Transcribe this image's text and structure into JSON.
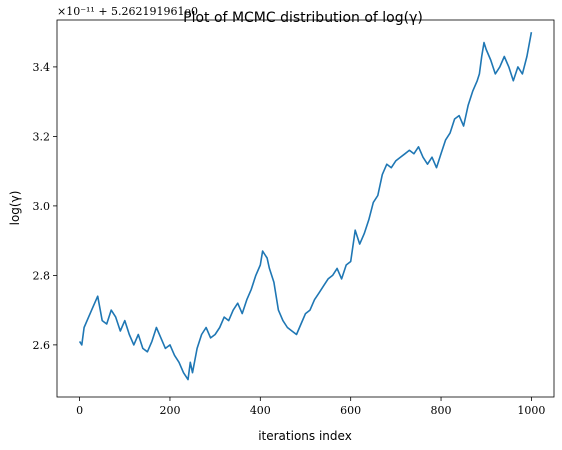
{
  "chart_data": {
    "type": "line",
    "title": "Plot of MCMC distribution of log(γ)",
    "xlabel": "iterations index",
    "ylabel": "log(γ)",
    "y_offset_text": "×10⁻¹¹ + 5.262191961e0",
    "xlim": [
      -50,
      1050
    ],
    "ylim": [
      2.45,
      3.535
    ],
    "x_ticks": [
      0,
      200,
      400,
      600,
      800,
      1000
    ],
    "x_tick_labels": [
      "0",
      "200",
      "400",
      "600",
      "800",
      "1000"
    ],
    "y_ticks": [
      2.6,
      2.8,
      3.0,
      3.2,
      3.4
    ],
    "y_tick_labels": [
      "2.6",
      "2.8",
      "3.0",
      "3.2",
      "3.4"
    ],
    "grid": false,
    "series": [
      {
        "color": "#1f77b4",
        "x": [
          0,
          5,
          10,
          20,
          30,
          40,
          50,
          60,
          70,
          80,
          90,
          100,
          110,
          120,
          130,
          140,
          150,
          160,
          170,
          180,
          190,
          200,
          210,
          220,
          230,
          240,
          245,
          250,
          260,
          270,
          280,
          290,
          300,
          310,
          320,
          330,
          340,
          350,
          360,
          370,
          380,
          390,
          400,
          405,
          410,
          415,
          420,
          430,
          440,
          450,
          460,
          470,
          480,
          490,
          500,
          510,
          520,
          530,
          540,
          550,
          560,
          570,
          580,
          590,
          600,
          610,
          620,
          630,
          640,
          650,
          660,
          670,
          680,
          690,
          700,
          710,
          720,
          730,
          740,
          750,
          760,
          770,
          780,
          790,
          800,
          810,
          820,
          830,
          840,
          850,
          860,
          870,
          880,
          885,
          890,
          895,
          900,
          910,
          920,
          930,
          940,
          950,
          960,
          970,
          980,
          990,
          1000
        ],
        "y": [
          2.61,
          2.6,
          2.65,
          2.68,
          2.71,
          2.74,
          2.67,
          2.66,
          2.7,
          2.68,
          2.64,
          2.67,
          2.63,
          2.6,
          2.63,
          2.59,
          2.58,
          2.61,
          2.65,
          2.62,
          2.59,
          2.6,
          2.57,
          2.55,
          2.52,
          2.5,
          2.55,
          2.52,
          2.59,
          2.63,
          2.65,
          2.62,
          2.63,
          2.65,
          2.68,
          2.67,
          2.7,
          2.72,
          2.69,
          2.73,
          2.76,
          2.8,
          2.83,
          2.87,
          2.86,
          2.85,
          2.82,
          2.78,
          2.7,
          2.67,
          2.65,
          2.64,
          2.63,
          2.66,
          2.69,
          2.7,
          2.73,
          2.75,
          2.77,
          2.79,
          2.8,
          2.82,
          2.79,
          2.83,
          2.84,
          2.93,
          2.89,
          2.92,
          2.96,
          3.01,
          3.03,
          3.09,
          3.12,
          3.11,
          3.13,
          3.14,
          3.15,
          3.16,
          3.15,
          3.17,
          3.14,
          3.12,
          3.14,
          3.11,
          3.15,
          3.19,
          3.21,
          3.25,
          3.26,
          3.23,
          3.29,
          3.33,
          3.36,
          3.38,
          3.43,
          3.47,
          3.45,
          3.42,
          3.38,
          3.4,
          3.43,
          3.4,
          3.36,
          3.4,
          3.38,
          3.43,
          3.5
        ]
      }
    ]
  }
}
